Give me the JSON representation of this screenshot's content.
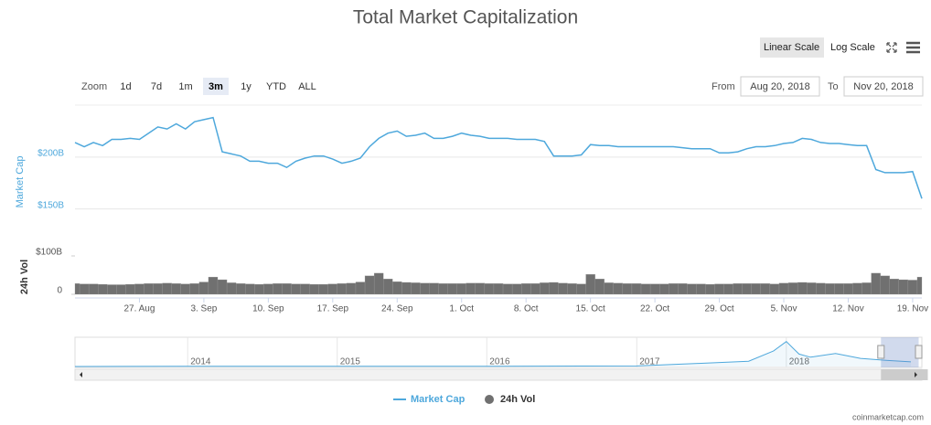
{
  "chart_data": {
    "type": "line",
    "title": "Total Market Capitalization",
    "scale_buttons": [
      "Linear Scale",
      "Log Scale"
    ],
    "log_scale": false,
    "zoom": {
      "label": "Zoom",
      "buttons": [
        "1d",
        "7d",
        "1m",
        "3m",
        "1y",
        "YTD",
        "ALL"
      ],
      "active": "3m"
    },
    "range": {
      "from_label": "From",
      "from": "Aug 20, 2018",
      "to_label": "To",
      "to": "Nov 20, 2018"
    },
    "ylabel": "Market Cap",
    "y2label": "24h Vol",
    "x": [
      "2018-08-20",
      "2018-08-21",
      "2018-08-22",
      "2018-08-23",
      "2018-08-24",
      "2018-08-25",
      "2018-08-26",
      "2018-08-27",
      "2018-08-28",
      "2018-08-29",
      "2018-08-30",
      "2018-08-31",
      "2018-09-01",
      "2018-09-02",
      "2018-09-03",
      "2018-09-04",
      "2018-09-05",
      "2018-09-06",
      "2018-09-07",
      "2018-09-08",
      "2018-09-09",
      "2018-09-10",
      "2018-09-11",
      "2018-09-12",
      "2018-09-13",
      "2018-09-14",
      "2018-09-15",
      "2018-09-16",
      "2018-09-17",
      "2018-09-18",
      "2018-09-19",
      "2018-09-20",
      "2018-09-21",
      "2018-09-22",
      "2018-09-23",
      "2018-09-24",
      "2018-09-25",
      "2018-09-26",
      "2018-09-27",
      "2018-09-28",
      "2018-09-29",
      "2018-09-30",
      "2018-10-01",
      "2018-10-02",
      "2018-10-03",
      "2018-10-04",
      "2018-10-05",
      "2018-10-06",
      "2018-10-07",
      "2018-10-08",
      "2018-10-09",
      "2018-10-10",
      "2018-10-11",
      "2018-10-12",
      "2018-10-13",
      "2018-10-14",
      "2018-10-15",
      "2018-10-16",
      "2018-10-17",
      "2018-10-18",
      "2018-10-19",
      "2018-10-20",
      "2018-10-21",
      "2018-10-22",
      "2018-10-23",
      "2018-10-24",
      "2018-10-25",
      "2018-10-26",
      "2018-10-27",
      "2018-10-28",
      "2018-10-29",
      "2018-10-30",
      "2018-10-31",
      "2018-11-01",
      "2018-11-02",
      "2018-11-03",
      "2018-11-04",
      "2018-11-05",
      "2018-11-06",
      "2018-11-07",
      "2018-11-08",
      "2018-11-09",
      "2018-11-10",
      "2018-11-11",
      "2018-11-12",
      "2018-11-13",
      "2018-11-14",
      "2018-11-15",
      "2018-11-16",
      "2018-11-17",
      "2018-11-18",
      "2018-11-19",
      "2018-11-20"
    ],
    "xlim": [
      "2018-08-20",
      "2018-11-20"
    ],
    "xticks": [
      {
        "value": "2018-08-27",
        "label": "27. Aug"
      },
      {
        "value": "2018-09-03",
        "label": "3. Sep"
      },
      {
        "value": "2018-09-10",
        "label": "10. Sep"
      },
      {
        "value": "2018-09-17",
        "label": "17. Sep"
      },
      {
        "value": "2018-09-24",
        "label": "24. Sep"
      },
      {
        "value": "2018-10-01",
        "label": "1. Oct"
      },
      {
        "value": "2018-10-08",
        "label": "8. Oct"
      },
      {
        "value": "2018-10-15",
        "label": "15. Oct"
      },
      {
        "value": "2018-10-22",
        "label": "22. Oct"
      },
      {
        "value": "2018-10-29",
        "label": "29. Oct"
      },
      {
        "value": "2018-11-05",
        "label": "5. Nov"
      },
      {
        "value": "2018-11-12",
        "label": "12. Nov"
      },
      {
        "value": "2018-11-19",
        "label": "19. Nov"
      }
    ],
    "ylim": [
      140,
      250
    ],
    "yticks": [
      {
        "value": 150,
        "label": "$150B"
      },
      {
        "value": 200,
        "label": "$200B"
      }
    ],
    "y2lim": [
      0,
      100
    ],
    "y2ticks": [
      0,
      {
        "value": 100,
        "label": "$100B"
      }
    ],
    "grid": true,
    "series": [
      {
        "name": "Market Cap",
        "color": "#4ea8dc",
        "values": [
          214,
          210,
          214,
          211,
          217,
          217,
          218,
          217,
          223,
          229,
          227,
          232,
          227,
          234,
          236,
          238,
          205,
          203,
          201,
          196,
          196,
          194,
          194,
          190,
          196,
          199,
          201,
          201,
          198,
          194,
          196,
          199,
          210,
          218,
          223,
          225,
          220,
          221,
          223,
          218,
          218,
          220,
          223,
          221,
          220,
          218,
          218,
          218,
          217,
          217,
          217,
          215,
          201,
          201,
          201,
          202,
          212,
          211,
          211,
          210,
          210,
          210,
          210,
          210,
          210,
          210,
          209,
          208,
          208,
          208,
          204,
          204,
          205,
          208,
          210,
          210,
          211,
          213,
          214,
          218,
          217,
          214,
          213,
          213,
          212,
          211,
          211,
          188,
          185,
          185,
          185,
          186,
          160
        ]
      },
      {
        "name": "24h Vol",
        "color": "#707070",
        "axis": "y2",
        "values": [
          28,
          27,
          27,
          26,
          25,
          25,
          26,
          27,
          28,
          28,
          29,
          28,
          27,
          28,
          32,
          45,
          38,
          30,
          28,
          27,
          26,
          27,
          28,
          28,
          27,
          27,
          26,
          26,
          27,
          28,
          29,
          32,
          48,
          55,
          40,
          33,
          31,
          30,
          29,
          29,
          28,
          28,
          28,
          29,
          29,
          28,
          28,
          27,
          27,
          28,
          28,
          30,
          31,
          29,
          28,
          27,
          52,
          40,
          30,
          29,
          28,
          28,
          27,
          27,
          27,
          28,
          28,
          27,
          27,
          26,
          27,
          27,
          28,
          28,
          28,
          28,
          27,
          29,
          30,
          31,
          30,
          29,
          28,
          28,
          28,
          29,
          30,
          55,
          48,
          40,
          38,
          37,
          45
        ]
      }
    ],
    "navigator": {
      "x": [
        "2013-04",
        "2014-01",
        "2015-01",
        "2016-01",
        "2017-01",
        "2017-06",
        "2017-10",
        "2017-12",
        "2018-01",
        "2018-02",
        "2018-03",
        "2018-05",
        "2018-07",
        "2018-09",
        "2018-11"
      ],
      "values": [
        1,
        10,
        5,
        7,
        18,
        100,
        170,
        500,
        800,
        400,
        300,
        420,
        260,
        200,
        150
      ],
      "xlim": [
        "2013-04",
        "2018-11"
      ],
      "ylim": [
        0,
        850
      ],
      "xticks": [
        {
          "value": "2014-01",
          "label": "2014"
        },
        {
          "value": "2015-01",
          "label": "2015"
        },
        {
          "value": "2016-01",
          "label": "2016"
        },
        {
          "value": "2017-01",
          "label": "2017"
        },
        {
          "value": "2018-01",
          "label": "2018"
        }
      ]
    },
    "source": "coinmarketcap.com"
  }
}
